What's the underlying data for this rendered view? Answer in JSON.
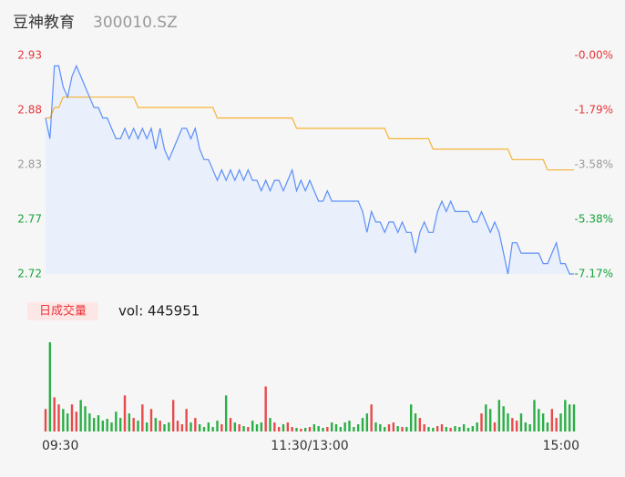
{
  "header": {
    "name": "豆神教育",
    "code": "300010.SZ"
  },
  "chart_data": [
    {
      "type": "line",
      "x": [
        0,
        2,
        4,
        6,
        8,
        10,
        12,
        14,
        16,
        18,
        20,
        22,
        24,
        26,
        28,
        30,
        32,
        34,
        36,
        38,
        40,
        42,
        44,
        46,
        48,
        50,
        52,
        54,
        56,
        58,
        60,
        62,
        64,
        66,
        68,
        70,
        72,
        74,
        76,
        78,
        80,
        82,
        84,
        86,
        88,
        90,
        92,
        94,
        96,
        98,
        100,
        102,
        104,
        106,
        108,
        110,
        112,
        114,
        116,
        118,
        120,
        122,
        124,
        126,
        128,
        130,
        132,
        134,
        136,
        138,
        140,
        142,
        144,
        146,
        148,
        150,
        152,
        154,
        156,
        158,
        160,
        162,
        164,
        166,
        168,
        170,
        172,
        174,
        176,
        178,
        180,
        182,
        184,
        186,
        188,
        190,
        192,
        194,
        196,
        198,
        200,
        202,
        204,
        206,
        208,
        210,
        212,
        214,
        216,
        218,
        220,
        222,
        224,
        226,
        228,
        230,
        232,
        234,
        236,
        238,
        240
      ],
      "xlim": [
        0,
        240
      ],
      "series": [
        {
          "name": "price",
          "color": "#5b8ff9",
          "values": [
            2.87,
            2.85,
            2.92,
            2.92,
            2.9,
            2.89,
            2.91,
            2.92,
            2.91,
            2.9,
            2.89,
            2.88,
            2.88,
            2.87,
            2.87,
            2.86,
            2.85,
            2.85,
            2.86,
            2.85,
            2.86,
            2.85,
            2.86,
            2.85,
            2.86,
            2.84,
            2.86,
            2.84,
            2.83,
            2.84,
            2.85,
            2.86,
            2.86,
            2.85,
            2.86,
            2.84,
            2.83,
            2.83,
            2.82,
            2.81,
            2.82,
            2.81,
            2.82,
            2.81,
            2.82,
            2.81,
            2.82,
            2.81,
            2.81,
            2.8,
            2.81,
            2.8,
            2.81,
            2.81,
            2.8,
            2.81,
            2.82,
            2.8,
            2.81,
            2.8,
            2.81,
            2.8,
            2.79,
            2.79,
            2.8,
            2.79,
            2.79,
            2.79,
            2.79,
            2.79,
            2.79,
            2.79,
            2.78,
            2.76,
            2.78,
            2.77,
            2.77,
            2.76,
            2.77,
            2.77,
            2.76,
            2.77,
            2.76,
            2.76,
            2.74,
            2.76,
            2.77,
            2.76,
            2.76,
            2.78,
            2.79,
            2.78,
            2.79,
            2.78,
            2.78,
            2.78,
            2.78,
            2.77,
            2.77,
            2.78,
            2.77,
            2.76,
            2.77,
            2.76,
            2.74,
            2.72,
            2.75,
            2.75,
            2.74,
            2.74,
            2.74,
            2.74,
            2.74,
            2.73,
            2.73,
            2.74,
            2.75,
            2.73,
            2.73,
            2.72,
            2.72
          ]
        },
        {
          "name": "average",
          "color": "#f5b335",
          "values": [
            2.87,
            2.87,
            2.88,
            2.88,
            2.89,
            2.89,
            2.89,
            2.89,
            2.89,
            2.89,
            2.89,
            2.89,
            2.89,
            2.89,
            2.89,
            2.89,
            2.89,
            2.89,
            2.89,
            2.89,
            2.89,
            2.88,
            2.88,
            2.88,
            2.88,
            2.88,
            2.88,
            2.88,
            2.88,
            2.88,
            2.88,
            2.88,
            2.88,
            2.88,
            2.88,
            2.88,
            2.88,
            2.88,
            2.88,
            2.87,
            2.87,
            2.87,
            2.87,
            2.87,
            2.87,
            2.87,
            2.87,
            2.87,
            2.87,
            2.87,
            2.87,
            2.87,
            2.87,
            2.87,
            2.87,
            2.87,
            2.87,
            2.86,
            2.86,
            2.86,
            2.86,
            2.86,
            2.86,
            2.86,
            2.86,
            2.86,
            2.86,
            2.86,
            2.86,
            2.86,
            2.86,
            2.86,
            2.86,
            2.86,
            2.86,
            2.86,
            2.86,
            2.86,
            2.85,
            2.85,
            2.85,
            2.85,
            2.85,
            2.85,
            2.85,
            2.85,
            2.85,
            2.85,
            2.84,
            2.84,
            2.84,
            2.84,
            2.84,
            2.84,
            2.84,
            2.84,
            2.84,
            2.84,
            2.84,
            2.84,
            2.84,
            2.84,
            2.84,
            2.84,
            2.84,
            2.84,
            2.83,
            2.83,
            2.83,
            2.83,
            2.83,
            2.83,
            2.83,
            2.83,
            2.82,
            2.82,
            2.82,
            2.82,
            2.82,
            2.82,
            2.82
          ]
        }
      ],
      "ylim": [
        2.72,
        2.93
      ],
      "yticks": [
        2.93,
        {
          "value": 2.8775,
          "label": "2.88"
        },
        {
          "value": 2.825,
          "label": "2.83"
        },
        {
          "value": 2.7725,
          "label": "2.77"
        },
        2.72
      ],
      "ytick_colors": [
        "#e8363a",
        "#e8363a",
        "#999999",
        "#17a33b",
        "#17a33b"
      ],
      "y2lim": [
        -7.17,
        0
      ],
      "y2ticks": [
        {
          "value": 0,
          "label": "-0.00%"
        },
        {
          "value": -1.79,
          "label": "-1.79%"
        },
        {
          "value": -3.58,
          "label": "-3.58%"
        },
        {
          "value": -5.38,
          "label": "-5.38%"
        },
        {
          "value": -7.17,
          "label": "-7.17%"
        }
      ],
      "area_color": "#e9effb"
    },
    {
      "type": "bar",
      "badge": "日成交量",
      "label": "vol: 445951",
      "x": [
        0,
        2,
        4,
        6,
        8,
        10,
        12,
        14,
        16,
        18,
        20,
        22,
        24,
        26,
        28,
        30,
        32,
        34,
        36,
        38,
        40,
        42,
        44,
        46,
        48,
        50,
        52,
        54,
        56,
        58,
        60,
        62,
        64,
        66,
        68,
        70,
        72,
        74,
        76,
        78,
        80,
        82,
        84,
        86,
        88,
        90,
        92,
        94,
        96,
        98,
        100,
        102,
        104,
        106,
        108,
        110,
        112,
        114,
        116,
        118,
        120,
        122,
        124,
        126,
        128,
        130,
        132,
        134,
        136,
        138,
        140,
        142,
        144,
        146,
        148,
        150,
        152,
        154,
        156,
        158,
        160,
        162,
        164,
        166,
        168,
        170,
        172,
        174,
        176,
        178,
        180,
        182,
        184,
        186,
        188,
        190,
        192,
        194,
        196,
        198,
        200,
        202,
        204,
        206,
        208,
        210,
        212,
        214,
        216,
        218,
        220,
        222,
        224,
        226,
        228,
        230,
        232,
        234,
        236,
        238,
        240
      ],
      "xlim": [
        0,
        240
      ],
      "xticks": [
        {
          "value": 0,
          "label": "09:30"
        },
        {
          "value": 120,
          "label": "11:30/13:00"
        },
        {
          "value": 240,
          "label": "15:00"
        }
      ],
      "values": [
        25,
        99,
        38,
        30,
        25,
        20,
        30,
        22,
        35,
        28,
        20,
        15,
        18,
        12,
        14,
        10,
        22,
        15,
        40,
        20,
        15,
        12,
        30,
        10,
        25,
        15,
        12,
        8,
        10,
        35,
        12,
        8,
        25,
        10,
        15,
        8,
        5,
        10,
        5,
        12,
        8,
        40,
        15,
        10,
        8,
        6,
        5,
        12,
        8,
        10,
        50,
        15,
        10,
        5,
        8,
        10,
        5,
        4,
        3,
        4,
        5,
        8,
        6,
        4,
        5,
        10,
        8,
        5,
        10,
        12,
        5,
        8,
        15,
        20,
        30,
        10,
        8,
        5,
        8,
        10,
        6,
        5,
        5,
        30,
        20,
        15,
        8,
        5,
        4,
        6,
        8,
        5,
        4,
        6,
        5,
        8,
        4,
        6,
        10,
        20,
        30,
        25,
        10,
        35,
        28,
        20,
        15,
        12,
        20,
        10,
        8,
        35,
        25,
        20,
        10,
        25,
        15,
        20,
        35,
        30,
        30
      ],
      "ylim": [
        0,
        100
      ],
      "up_color": "#e84a4a",
      "down_color": "#2aae45"
    }
  ]
}
